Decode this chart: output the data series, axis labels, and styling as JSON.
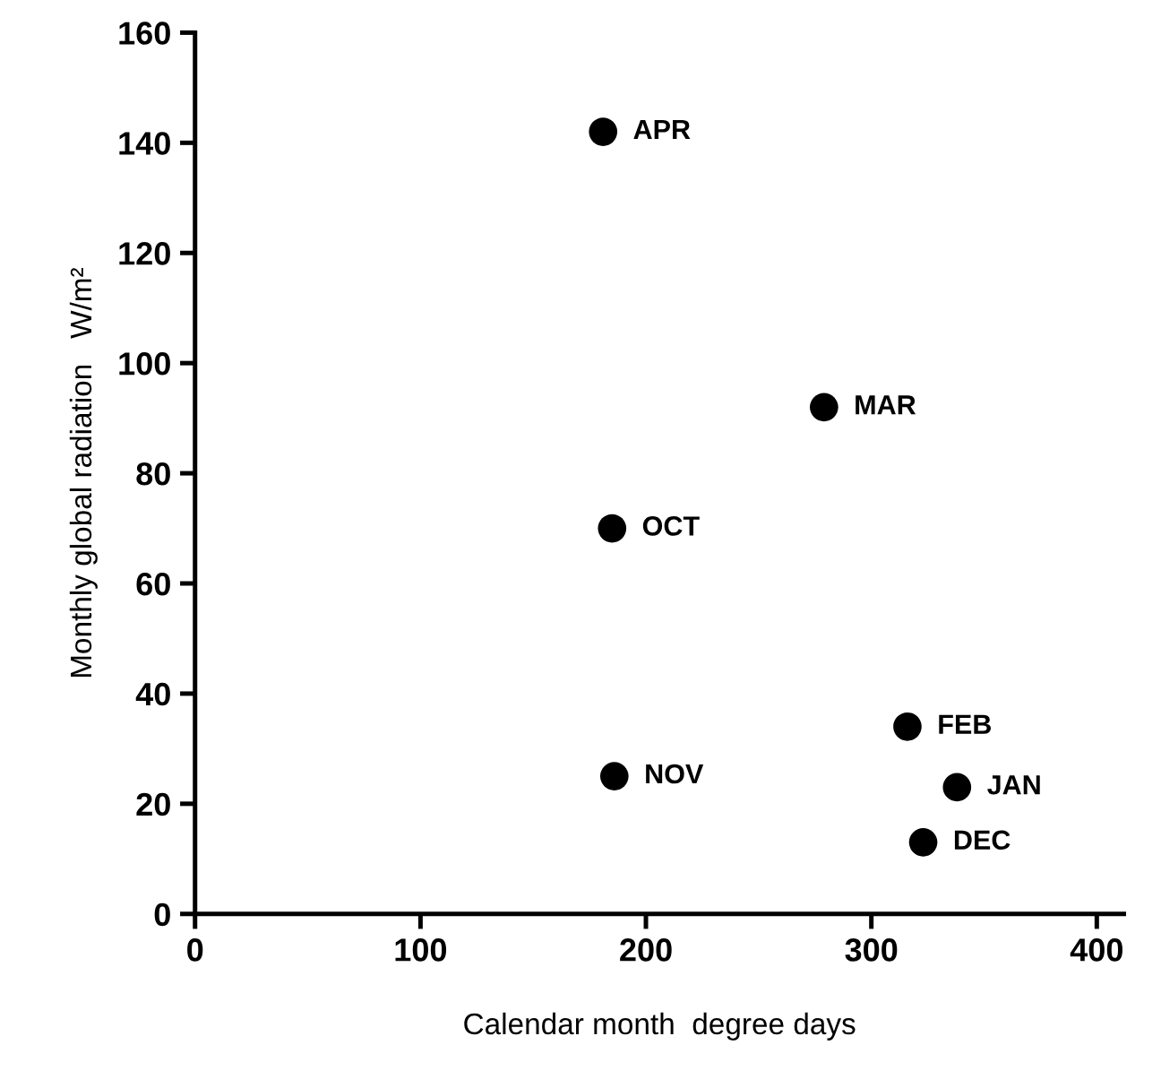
{
  "chart_data": {
    "type": "scatter",
    "xlabel": "Calendar month  degree days",
    "ylabel": "Monthly global radiation   W/m²",
    "x": [
      181,
      279,
      185,
      186,
      316,
      338,
      323
    ],
    "series": [
      {
        "color": "#000000",
        "values": [
          142,
          92,
          70,
          25,
          34,
          23,
          13
        ]
      }
    ],
    "marker": "circle",
    "grid": false,
    "legend": false,
    "xlim": [
      0,
      412
    ],
    "xticks": [
      0,
      100,
      200,
      300,
      400
    ],
    "ylim": [
      0,
      160
    ],
    "yticks": [
      0,
      20,
      40,
      60,
      80,
      100,
      120,
      140,
      160
    ],
    "annotations": [
      {
        "text": "APR",
        "x": 181,
        "y": 142
      },
      {
        "text": "MAR",
        "x": 279,
        "y": 92
      },
      {
        "text": "OCT",
        "x": 185,
        "y": 70
      },
      {
        "text": "NOV",
        "x": 186,
        "y": 25
      },
      {
        "text": "FEB",
        "x": 316,
        "y": 34
      },
      {
        "text": "JAN",
        "x": 338,
        "y": 23
      },
      {
        "text": "DEC",
        "x": 323,
        "y": 13
      }
    ]
  }
}
